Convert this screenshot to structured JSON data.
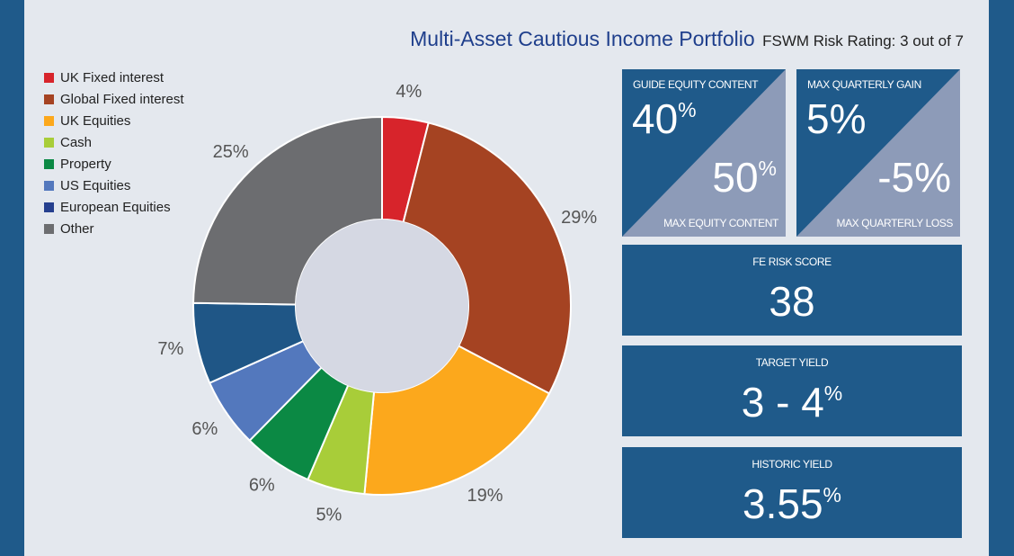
{
  "title": {
    "main": "Multi-Asset Cautious Income Portfolio",
    "sub": "FSWM Risk Rating: 3 out of 7"
  },
  "chart_data": {
    "type": "pie",
    "donut": true,
    "categories": [
      "UK Fixed interest",
      "Global Fixed interest",
      "UK Equities",
      "Cash",
      "Property",
      "US Equities",
      "European Equities",
      "Other"
    ],
    "values": [
      4,
      29,
      19,
      5,
      6,
      6,
      7,
      25
    ],
    "labels": [
      "4%",
      "29%",
      "19%",
      "5%",
      "6%",
      "6%",
      "7%",
      "25%"
    ],
    "colors": [
      "#d7242b",
      "#a54322",
      "#fca81c",
      "#a8cd39",
      "#0b8944",
      "#5378bd",
      "#1f5686",
      "#6c6d70"
    ],
    "legend_position": "top-left"
  },
  "legend_colors": [
    "#d7242b",
    "#a54322",
    "#fca81c",
    "#a8cd39",
    "#0b8944",
    "#5378bd",
    "#253f8e",
    "#6c6d70"
  ],
  "boxes": {
    "equity": {
      "top_label": "GUIDE EQUITY CONTENT",
      "top_value": "40",
      "top_unit": "%",
      "bottom_value": "50",
      "bottom_unit": "%",
      "bottom_label": "MAX EQUITY CONTENT"
    },
    "quarterly": {
      "top_label": "MAX QUARTERLY GAIN",
      "top_value": "5%",
      "bottom_value": "-5%",
      "bottom_label": "MAX QUARTERLY LOSS"
    },
    "fe_risk": {
      "label": "FE RISK SCORE",
      "value": "38"
    },
    "target_yield": {
      "label": "TARGET YIELD",
      "value": "3 - 4",
      "unit": "%"
    },
    "historic_yield": {
      "label": "HISTORIC YIELD",
      "value": "3.55",
      "unit": "%"
    }
  },
  "colors": {
    "frame_blue": "#1f5a8a",
    "panel_bg": "#e4e8ee",
    "triangle_light": "#8d9bb8",
    "title_blue": "#1f3f8c",
    "donut_hole": "#d5d8e3"
  }
}
